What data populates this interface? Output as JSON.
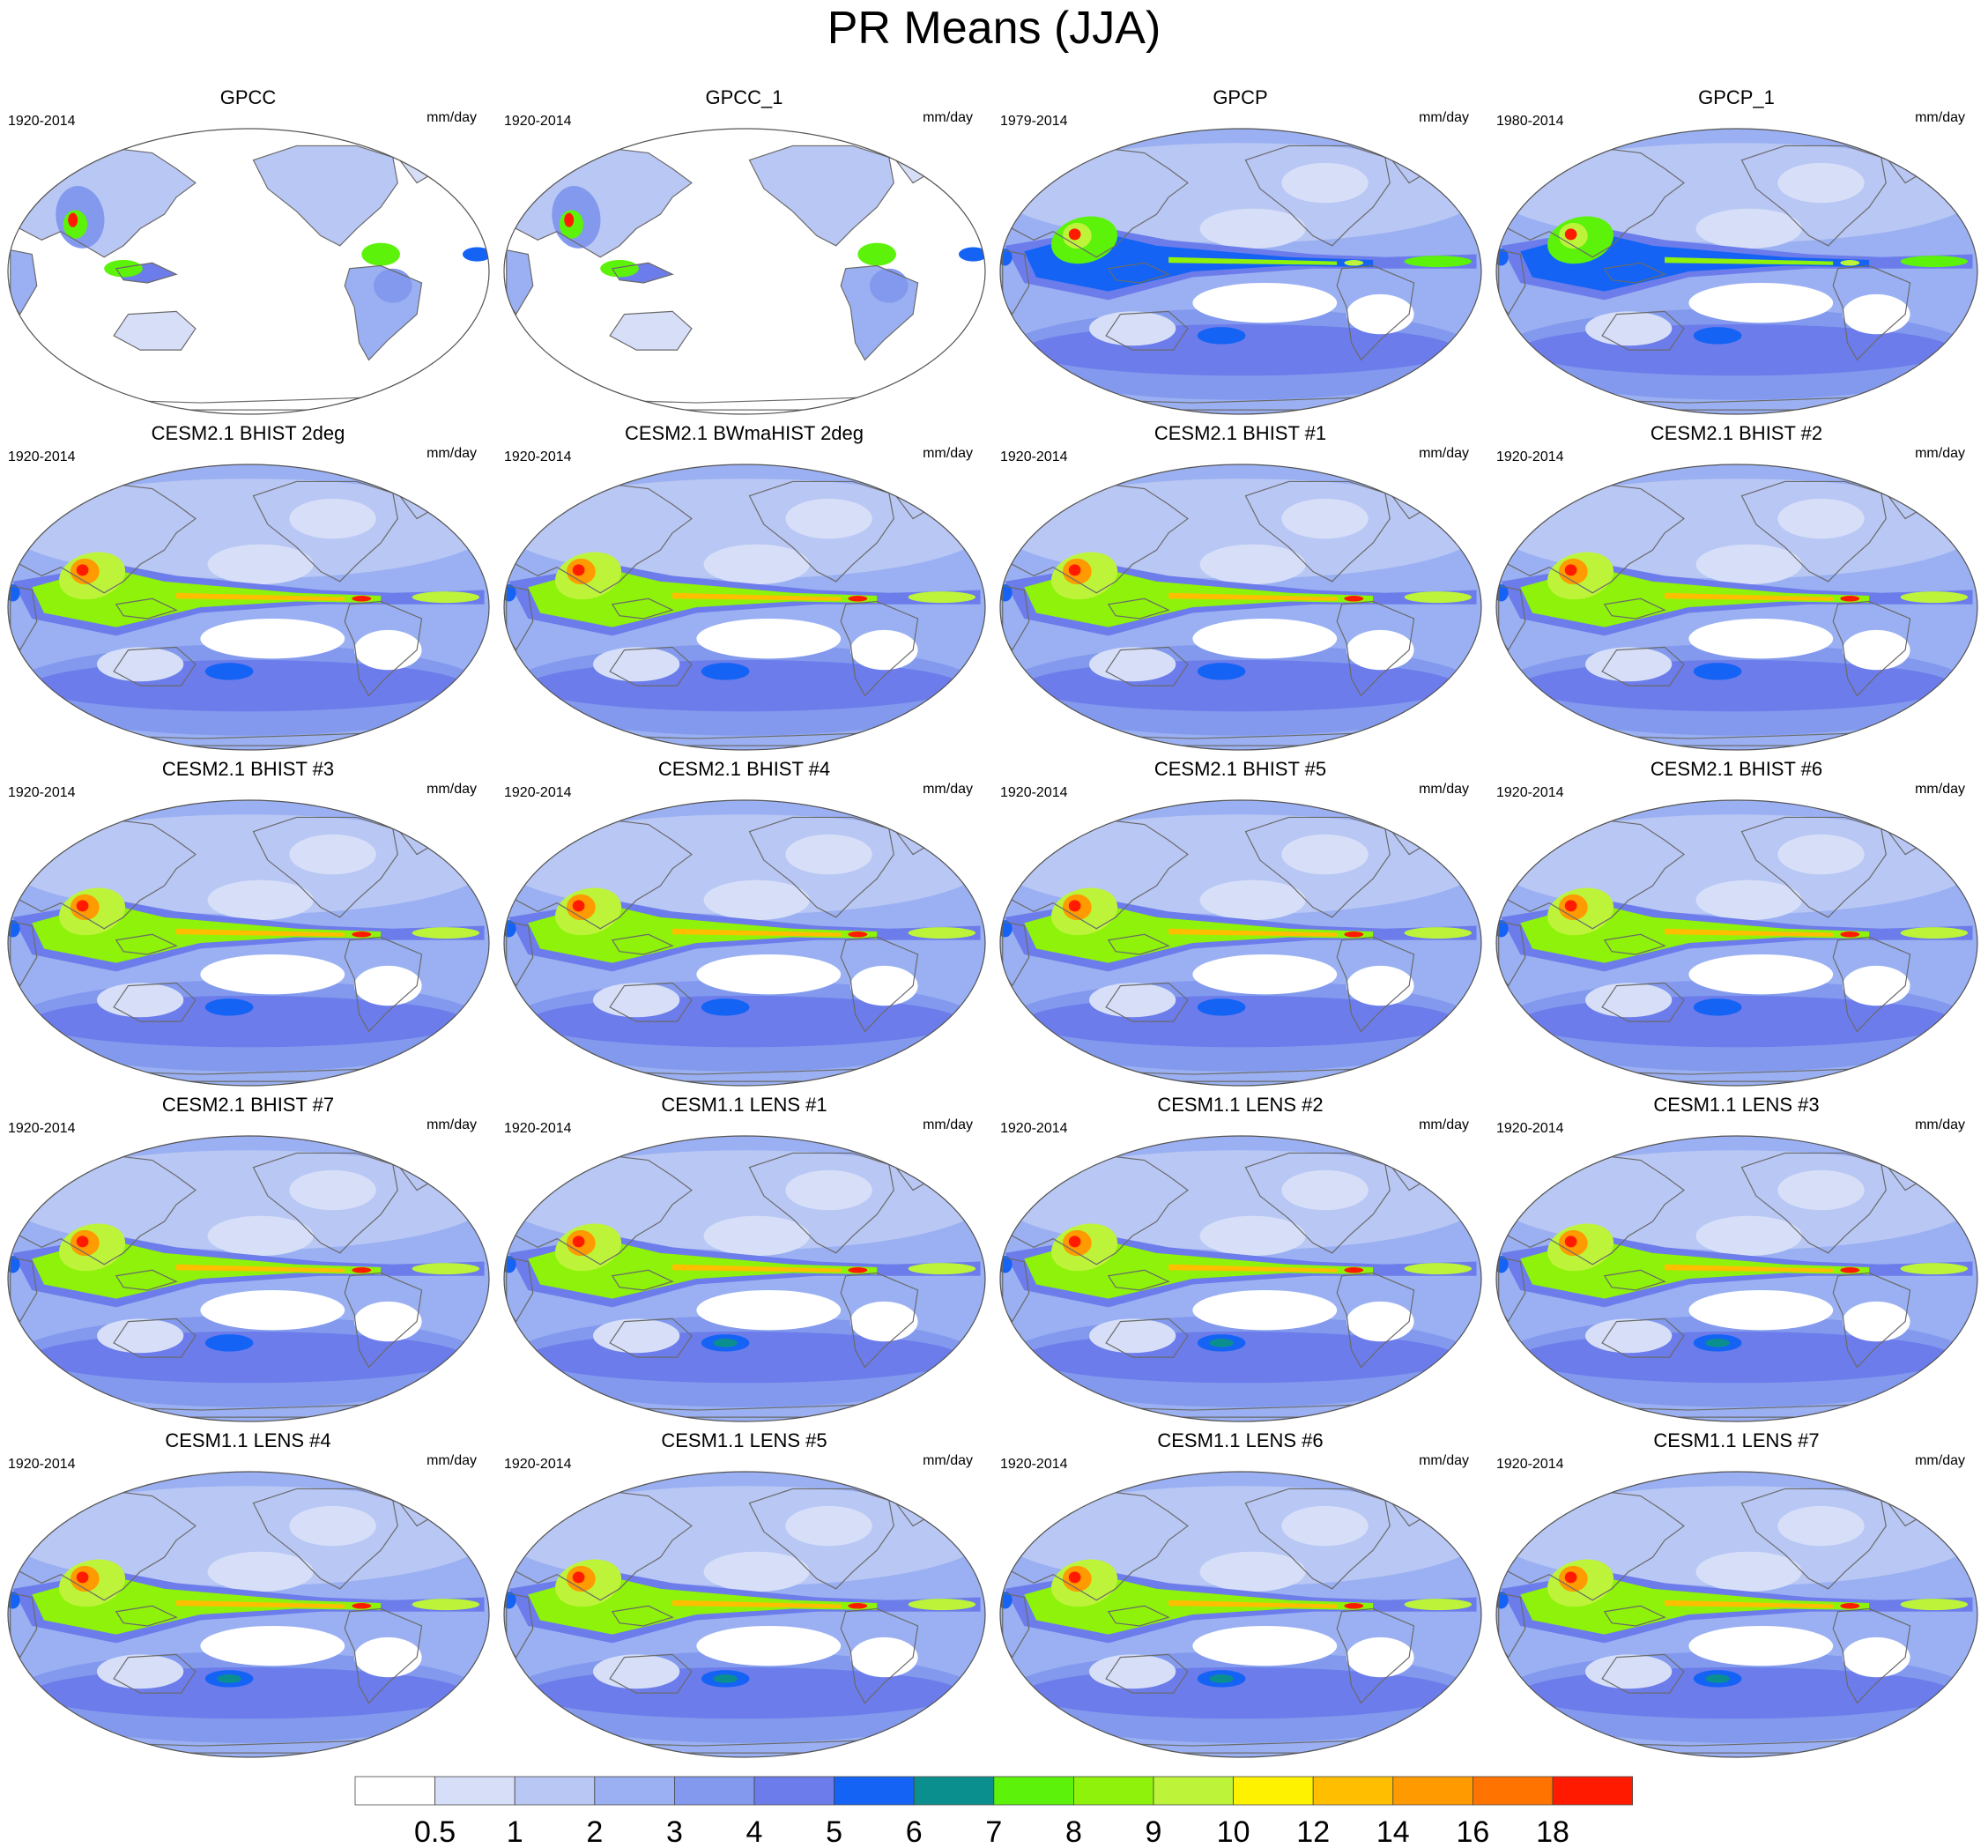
{
  "title": "PR Means (JJA)",
  "units": "mm/day",
  "panels": [
    {
      "name": "GPCC",
      "years": "1920-2014",
      "style": "gpcc"
    },
    {
      "name": "GPCC_1",
      "years": "1920-2014",
      "style": "gpcc"
    },
    {
      "name": "GPCP",
      "years": "1979-2014",
      "style": "gpcp"
    },
    {
      "name": "GPCP_1",
      "years": "1980-2014",
      "style": "gpcp"
    },
    {
      "name": "CESM2.1 BHIST 2deg",
      "years": "1920-2014",
      "style": "cesm2"
    },
    {
      "name": "CESM2.1 BWmaHIST 2deg",
      "years": "1920-2014",
      "style": "cesm2"
    },
    {
      "name": "CESM2.1 BHIST #1",
      "years": "1920-2014",
      "style": "cesm2"
    },
    {
      "name": "CESM2.1 BHIST #2",
      "years": "1920-2014",
      "style": "cesm2"
    },
    {
      "name": "CESM2.1 BHIST #3",
      "years": "1920-2014",
      "style": "cesm2"
    },
    {
      "name": "CESM2.1 BHIST #4",
      "years": "1920-2014",
      "style": "cesm2"
    },
    {
      "name": "CESM2.1 BHIST #5",
      "years": "1920-2014",
      "style": "cesm2"
    },
    {
      "name": "CESM2.1 BHIST #6",
      "years": "1920-2014",
      "style": "cesm2"
    },
    {
      "name": "CESM2.1 BHIST #7",
      "years": "1920-2014",
      "style": "cesm2"
    },
    {
      "name": "CESM1.1 LENS #1",
      "years": "1920-2014",
      "style": "cesm1"
    },
    {
      "name": "CESM1.1 LENS #2",
      "years": "1920-2014",
      "style": "cesm1"
    },
    {
      "name": "CESM1.1 LENS #3",
      "years": "1920-2014",
      "style": "cesm1"
    },
    {
      "name": "CESM1.1 LENS #4",
      "years": "1920-2014",
      "style": "cesm1"
    },
    {
      "name": "CESM1.1 LENS #5",
      "years": "1920-2014",
      "style": "cesm1"
    },
    {
      "name": "CESM1.1 LENS #6",
      "years": "1920-2014",
      "style": "cesm1"
    },
    {
      "name": "CESM1.1 LENS #7",
      "years": "1920-2014",
      "style": "cesm1"
    }
  ],
  "colorbar": {
    "labels": [
      "0.5",
      "1",
      "2",
      "3",
      "4",
      "5",
      "6",
      "7",
      "8",
      "9",
      "10",
      "12",
      "14",
      "16",
      "18"
    ],
    "colors": [
      "#ffffff",
      "#d7dff8",
      "#b9c7f4",
      "#9ab0f2",
      "#8299ee",
      "#6c7cea",
      "#1463f5",
      "#0b8f8e",
      "#5cf20a",
      "#8ef20a",
      "#bdf43a",
      "#fff200",
      "#ffbf00",
      "#ff9a00",
      "#ff7400",
      "#ff1a00"
    ]
  }
}
